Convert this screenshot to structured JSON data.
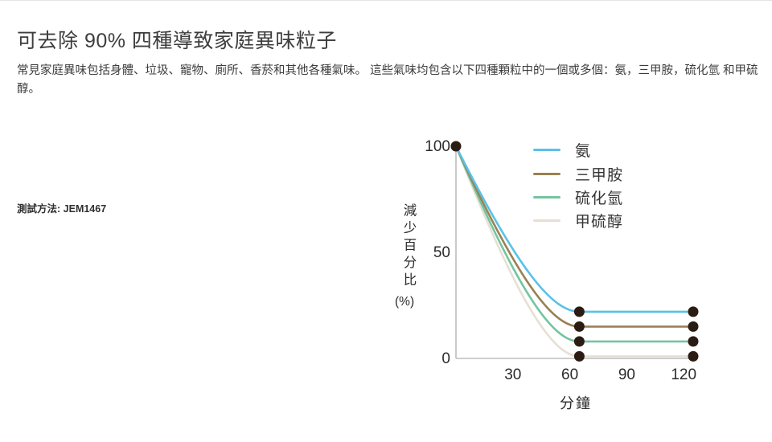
{
  "header": {
    "title": "可去除 90% 四種導致家庭異味粒子",
    "description": "常見家庭異味包括身體、垃圾、寵物、廁所、香菸和其他各種氣味。 這些氣味均包含以下四種顆粒中的一個或多個：氨，三甲胺，硫化氫 和甲硫醇。"
  },
  "test_method": {
    "label": "測試方法:",
    "value": "JEM1467"
  },
  "icons": {
    "circle_color": "#54BEEA",
    "stroke_color": "#FFFFFF",
    "items": [
      "body-odor",
      "garbage",
      "pets",
      "toilet",
      "cigarette"
    ]
  },
  "chart_data": {
    "type": "line",
    "title": "",
    "xlabel": "分鐘",
    "ylabel": "減少百分比",
    "ylabel_unit": "(%)",
    "x_ticks": [
      30,
      60,
      90,
      120
    ],
    "y_ticks": [
      100,
      50,
      0
    ],
    "xlim": [
      0,
      130
    ],
    "ylim": [
      0,
      100
    ],
    "grid": false,
    "legend_position": "upper right",
    "axis_color": "#bdbdbd",
    "marker_color": "#2b1c13",
    "x": [
      0,
      65,
      125
    ],
    "series": [
      {
        "name": "氨",
        "color": "#59c2e8",
        "values": [
          100,
          22,
          22
        ]
      },
      {
        "name": "三甲胺",
        "color": "#9a8153",
        "values": [
          100,
          15,
          15
        ]
      },
      {
        "name": "硫化氫",
        "color": "#74c4a0",
        "values": [
          100,
          8,
          8
        ]
      },
      {
        "name": "甲硫醇",
        "color": "#e6e0d4",
        "values": [
          100,
          1,
          1
        ]
      }
    ]
  }
}
